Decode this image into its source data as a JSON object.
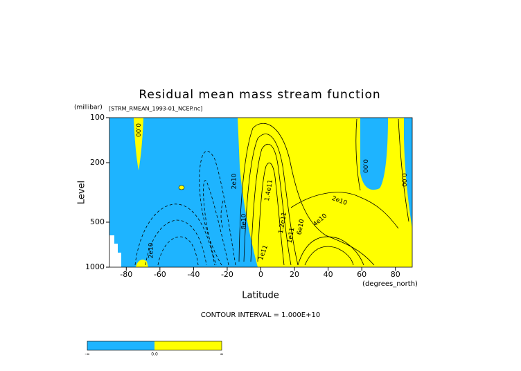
{
  "chart_data": {
    "type": "contour",
    "title": "Residual mean mass stream function",
    "subtitle": "[STRM_RMEAN_1993-01_NCEP.nc]",
    "y_unit": "(millibar)",
    "y_label": "Level",
    "x_label": "Latitude",
    "x_unit": "(degrees_north)",
    "note": "CONTOUR INTERVAL = 1.000E+10",
    "xlim": [
      -90,
      90
    ],
    "xticks": [
      -80,
      -60,
      -40,
      -20,
      0,
      20,
      40,
      60,
      80
    ],
    "ylim": [
      1000,
      100
    ],
    "yticks": [
      100,
      200,
      500,
      1000
    ],
    "y_log": true,
    "negative_color": "#1eb4ff",
    "positive_color": "#ffff00",
    "contour_labels": [
      "0.00",
      "2e10",
      "2e10",
      "1.4e11",
      "1.2e11",
      "1e11",
      "6e10",
      "4e10",
      "2e10",
      "0.00",
      "0.00",
      "1e11",
      "8e10"
    ],
    "colorbar": {
      "labels": [
        "-∞",
        "0.0",
        "∞"
      ]
    }
  }
}
